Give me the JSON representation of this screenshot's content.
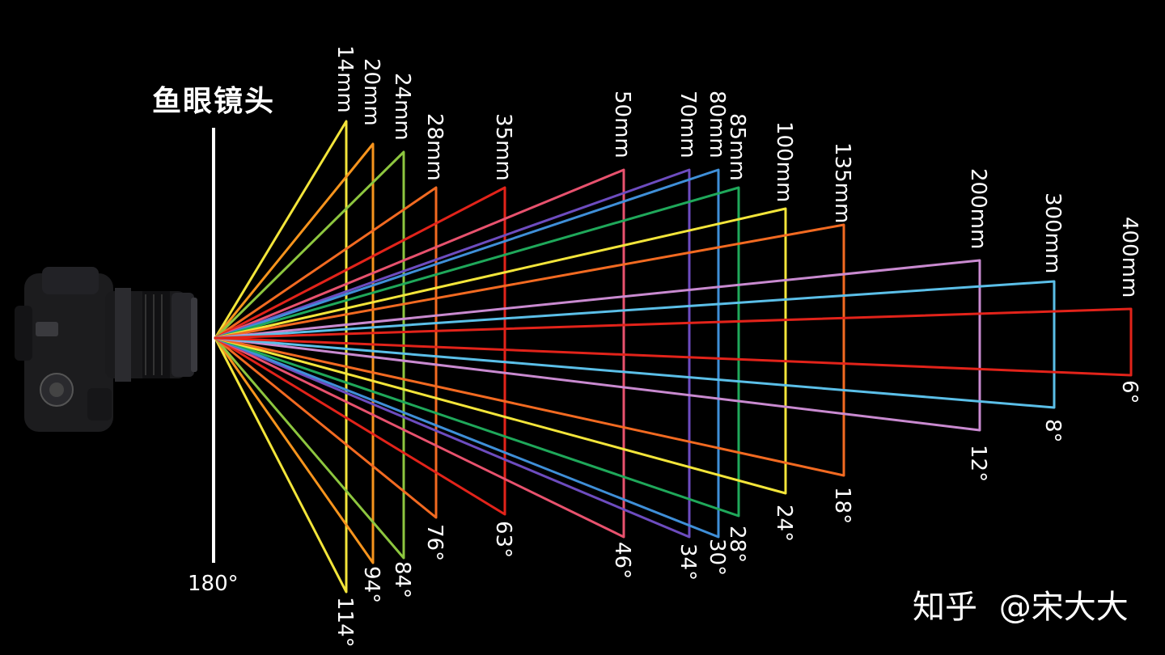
{
  "fisheye": {
    "label": "鱼眼镜头",
    "angle_label": "180°"
  },
  "watermark": {
    "site": "知乎",
    "author": "@宋大大"
  },
  "icons": {
    "camera": "dslr-camera-icon"
  },
  "lenses": [
    {
      "focal": "14mm",
      "angle": "114°",
      "color": "#f3e53a"
    },
    {
      "focal": "20mm",
      "angle": "94°",
      "color": "#f7941d"
    },
    {
      "focal": "24mm",
      "angle": "84°",
      "color": "#8dc63f"
    },
    {
      "focal": "28mm",
      "angle": "76°",
      "color": "#f26a21"
    },
    {
      "focal": "35mm",
      "angle": "63°",
      "color": "#e2231a"
    },
    {
      "focal": "50mm",
      "angle": "46°",
      "color": "#e8526e"
    },
    {
      "focal": "70mm",
      "angle": "34°",
      "color": "#6d4cbf"
    },
    {
      "focal": "80mm",
      "angle": "30°",
      "color": "#3f8fd8"
    },
    {
      "focal": "85mm",
      "angle": "28°",
      "color": "#1fa85a"
    },
    {
      "focal": "100mm",
      "angle": "24°",
      "color": "#f3e53a"
    },
    {
      "focal": "135mm",
      "angle": "18°",
      "color": "#f26a21"
    },
    {
      "focal": "200mm",
      "angle": "12°",
      "color": "#c98ad0"
    },
    {
      "focal": "300mm",
      "angle": "8°",
      "color": "#5bbfe8"
    },
    {
      "focal": "400mm",
      "angle": "6°",
      "color": "#e2231a"
    }
  ]
}
